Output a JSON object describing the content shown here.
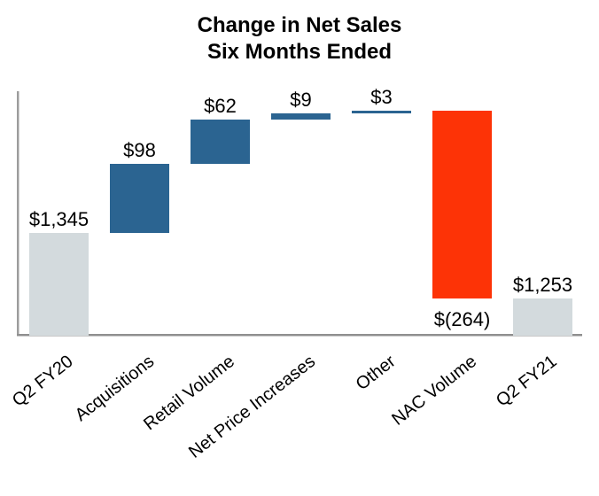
{
  "page": {
    "background": "#ffffff"
  },
  "chart_data": {
    "type": "bar",
    "variant": "waterfall",
    "title": "Change in Net Sales",
    "subtitle": "Six Months Ended",
    "categories": [
      "Q2 FY20",
      "Acquisitions",
      "Retail Volume",
      "Net Price Increases",
      "Other",
      "NAC Volume",
      "Q2 FY21"
    ],
    "series": [
      {
        "name": "Q2 FY20",
        "value": 1345,
        "kind": "total",
        "label": "$1,345",
        "label_position": "above"
      },
      {
        "name": "Acquisitions",
        "value": 98,
        "kind": "increase",
        "label": "$98",
        "label_position": "above"
      },
      {
        "name": "Retail Volume",
        "value": 62,
        "kind": "increase",
        "label": "$62",
        "label_position": "above"
      },
      {
        "name": "Net Price Increases",
        "value": 9,
        "kind": "increase",
        "label": "$9",
        "label_position": "above"
      },
      {
        "name": "Other",
        "value": 3,
        "kind": "increase",
        "label": "$3",
        "label_position": "above"
      },
      {
        "name": "NAC Volume",
        "value": -264,
        "kind": "decrease",
        "label": "$(264)",
        "label_position": "below"
      },
      {
        "name": "Q2 FY21",
        "value": 1253,
        "kind": "total",
        "label": "$1,253",
        "label_position": "above"
      }
    ],
    "colors": {
      "total": "#d3dadd",
      "increase": "#2b6491",
      "decrease": "#fd3306",
      "axis": "#9c9c9c",
      "label_text": "#000000"
    },
    "axis": {
      "y_min": 1200,
      "y_tick_labels_visible": false,
      "grid": false,
      "legend": false,
      "x_label_rotation_deg": -38
    }
  }
}
